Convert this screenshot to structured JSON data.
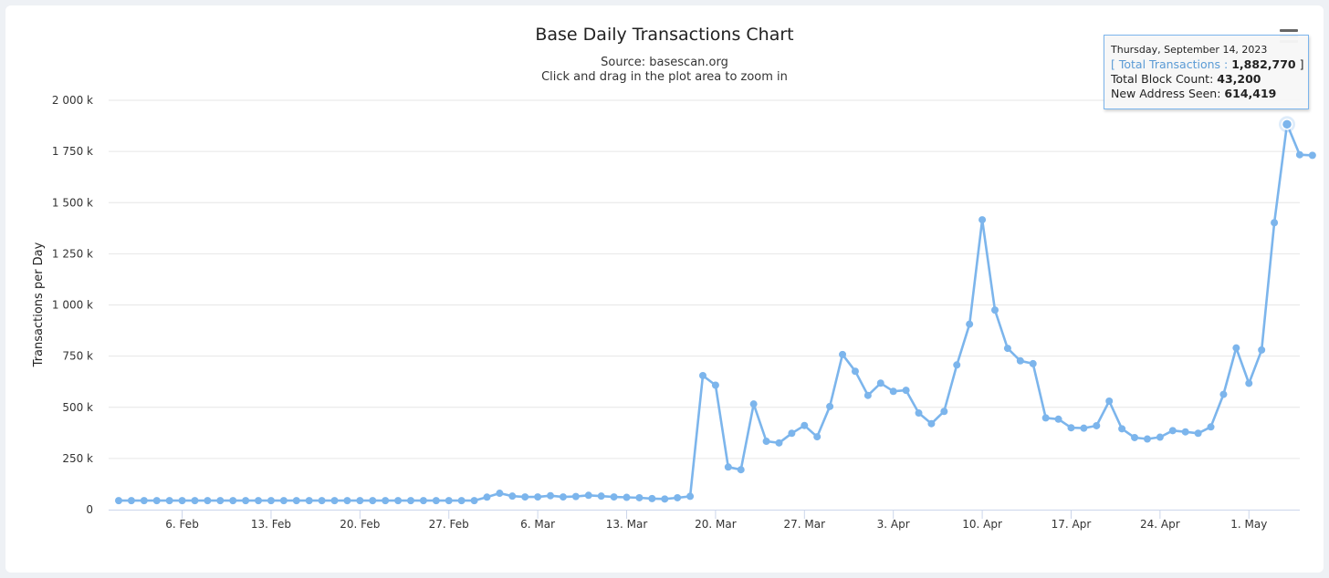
{
  "chart_data": {
    "type": "line",
    "title": "Base Daily Transactions Chart",
    "subtitle": "Source: basescan.org",
    "subtitle2": "Click and drag in the plot area to zoom in",
    "ylabel": "Transactions per Day",
    "xlabel": "",
    "ylim": [
      0,
      2000000
    ],
    "y_ticks": [
      0,
      250000,
      500000,
      750000,
      1000000,
      1250000,
      1500000,
      1750000,
      2000000
    ],
    "y_tick_labels": [
      "0",
      "250 k",
      "500 k",
      "750 k",
      "1 000 k",
      "1 250 k",
      "1 500 k",
      "1 750 k",
      "2 000 k"
    ],
    "x_start_date": "2023-02-01",
    "x_end_date": "2023-05-04",
    "x_ticks": [
      "2023-02-06",
      "2023-02-13",
      "2023-02-20",
      "2023-02-27",
      "2023-03-06",
      "2023-03-13",
      "2023-03-20",
      "2023-03-27",
      "2023-04-03",
      "2023-04-10",
      "2023-04-17",
      "2023-04-24",
      "2023-05-01"
    ],
    "x_tick_labels": [
      "6. Feb",
      "13. Feb",
      "20. Feb",
      "27. Feb",
      "6. Mar",
      "13. Mar",
      "20. Mar",
      "27. Mar",
      "3. Apr",
      "10. Apr",
      "17. Apr",
      "24. Apr",
      "1. May"
    ],
    "grid": true,
    "legend": "none",
    "series_color": "#7cb5ec",
    "series": [
      {
        "name": "Total Transactions",
        "values": [
          44000,
          44000,
          44000,
          44000,
          44000,
          44000,
          44000,
          44000,
          44000,
          44000,
          44000,
          44000,
          44000,
          44000,
          44000,
          44000,
          44000,
          44000,
          44000,
          44000,
          44000,
          44000,
          44000,
          44000,
          44000,
          44000,
          44000,
          44000,
          44000,
          61000,
          80000,
          66000,
          62000,
          62000,
          68000,
          62000,
          64000,
          70000,
          66000,
          62000,
          60000,
          58000,
          54000,
          52000,
          58000,
          65000,
          655000,
          608000,
          208000,
          195000,
          516000,
          334000,
          326000,
          373000,
          411000,
          356000,
          504000,
          758000,
          676000,
          558000,
          618000,
          578000,
          583000,
          472000,
          420000,
          480000,
          707000,
          906000,
          1416000,
          975000,
          788000,
          727000,
          713000,
          448000,
          442000,
          400000,
          398000,
          410000,
          530000,
          395000,
          352000,
          345000,
          354000,
          386000,
          380000,
          373000,
          404000,
          563000,
          790000,
          617000,
          780000,
          1402000,
          1882770,
          1734000,
          1731000
        ]
      }
    ]
  },
  "tooltip": {
    "date": "Thursday, September 14, 2023",
    "open_bracket": "[ ",
    "series_label": "Total Transactions",
    "sep": " : ",
    "value": "1,882,770",
    "close_bracket": " ]",
    "block_label": "Total Block Count: ",
    "block_value": "43,200",
    "address_label": "New Address Seen: ",
    "address_value": "614,419"
  },
  "menu": {
    "icon": "hamburger-menu-icon"
  }
}
